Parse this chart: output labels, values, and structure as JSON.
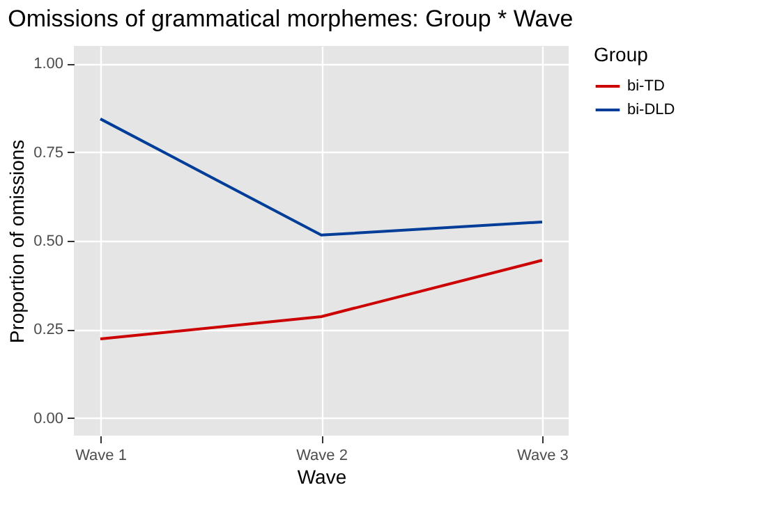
{
  "chart_data": {
    "type": "line",
    "title": "Omissions of grammatical morphemes: Group * Wave",
    "xlabel": "Wave",
    "ylabel": "Proportion of omissions",
    "legend_title": "Group",
    "categories": [
      "Wave 1",
      "Wave 2",
      "Wave 3"
    ],
    "series": [
      {
        "name": "bi-TD",
        "color": "#cc0000",
        "values": [
          0.223,
          0.286,
          0.445
        ]
      },
      {
        "name": "bi-DLD",
        "color": "#003d99",
        "values": [
          0.844,
          0.516,
          0.553
        ]
      }
    ],
    "ylim": [
      -0.05,
      1.05
    ],
    "yticks": [
      {
        "value": 0,
        "label": "0.00"
      },
      {
        "value": 0.25,
        "label": "0.25"
      },
      {
        "value": 0.5,
        "label": "0.50"
      },
      {
        "value": 0.75,
        "label": "0.75"
      },
      {
        "value": 1,
        "label": "1.00"
      }
    ],
    "grid": true,
    "legend": "right",
    "marker": "none",
    "line_style": "solid"
  }
}
